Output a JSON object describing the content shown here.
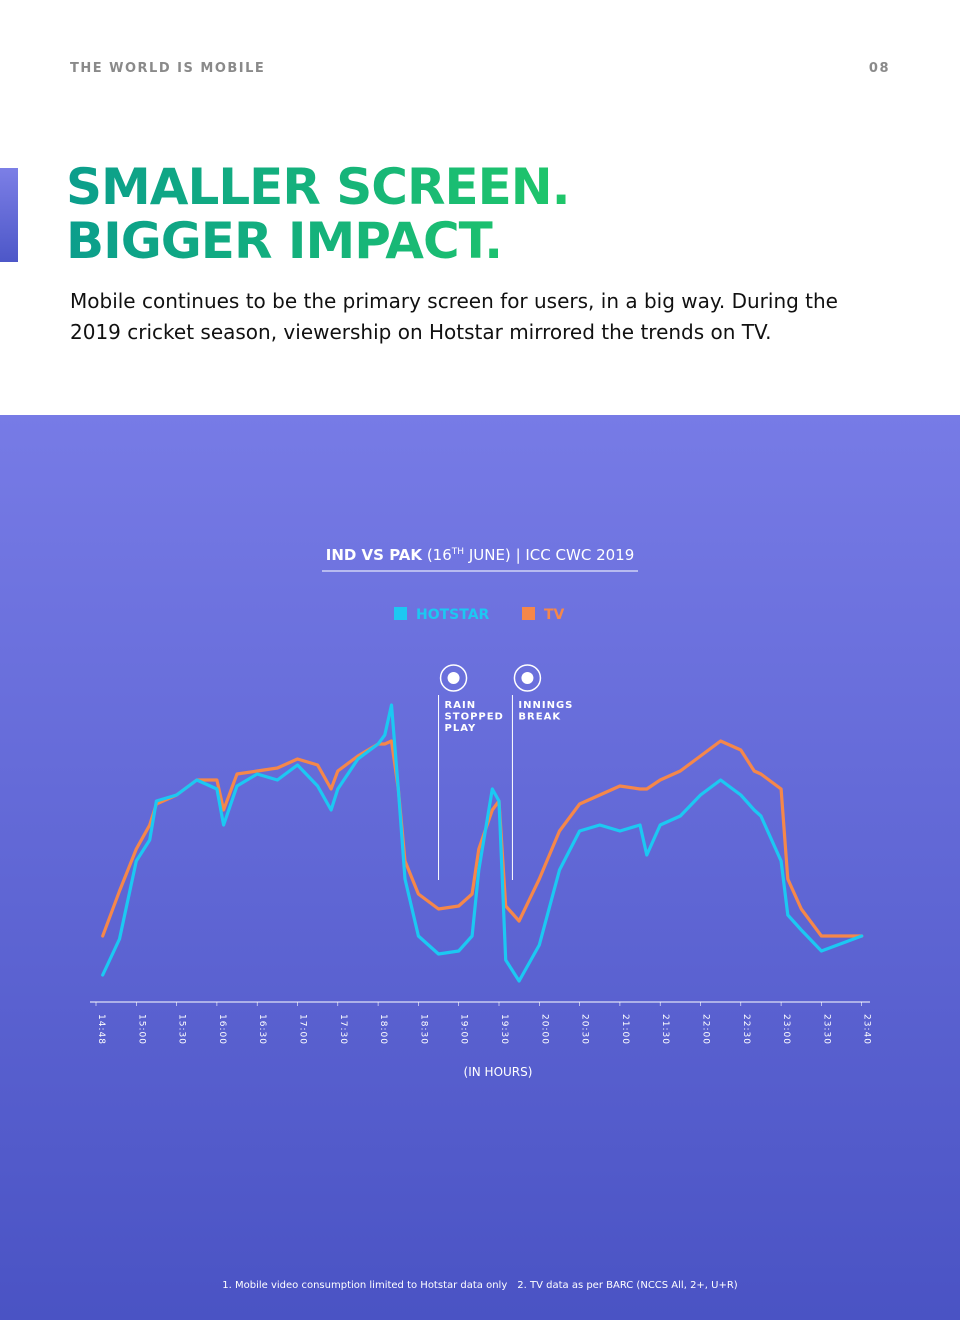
{
  "header": {
    "section": "THE WORLD IS MOBILE",
    "page": "08"
  },
  "headline": [
    "SMALLER SCREEN.",
    "BIGGER IMPACT."
  ],
  "body": "Mobile continues to be the primary screen for users, in a big way. During the 2019 cricket season, viewership on Hotstar mirrored the trends on TV.",
  "chart_data": {
    "type": "line",
    "title": {
      "match": "IND VS PAK",
      "date_open": "(16",
      "date_sup": "TH",
      "date_close": " JUNE)",
      "event": "| ICC CWC 2019"
    },
    "x_label": "(IN HOURS)",
    "x": [
      "14:50",
      "14:55",
      "15:00",
      "15:10",
      "15:15",
      "15:30",
      "15:45",
      "16:00",
      "16:05",
      "16:15",
      "16:30",
      "16:45",
      "17:00",
      "17:15",
      "17:25",
      "17:30",
      "17:45",
      "18:00",
      "18:05",
      "18:10",
      "18:15",
      "18:20",
      "18:30",
      "18:45",
      "19:00",
      "19:10",
      "19:15",
      "19:25",
      "19:30",
      "19:35",
      "19:45",
      "20:00",
      "20:15",
      "20:30",
      "20:45",
      "21:00",
      "21:15",
      "21:20",
      "21:30",
      "21:45",
      "22:00",
      "22:15",
      "22:30",
      "22:40",
      "22:45",
      "23:00",
      "23:05",
      "23:15",
      "23:30",
      "23:40"
    ],
    "xticks": [
      "14:48",
      "15:00",
      "15:30",
      "16:00",
      "16:30",
      "17:00",
      "17:30",
      "18:00",
      "18:30",
      "19:00",
      "19:30",
      "20:00",
      "20:30",
      "21:00",
      "21:30",
      "22:00",
      "22:30",
      "23:00",
      "23:30",
      "23:40"
    ],
    "series": [
      {
        "name": "HOTSTAR",
        "color": "#1cc8f2",
        "values": [
          9,
          21,
          47,
          54,
          67,
          69,
          74,
          71,
          59,
          72,
          76,
          74,
          79,
          72,
          64,
          71,
          81,
          86,
          89,
          99,
          71,
          41,
          22,
          16,
          17,
          22,
          44,
          71,
          67,
          14,
          7,
          19,
          44,
          57,
          59,
          57,
          59,
          49,
          59,
          62,
          69,
          74,
          69,
          64,
          62,
          47,
          29,
          24,
          17,
          22
        ]
      },
      {
        "name": "TV",
        "color": "#f5874a",
        "values": [
          22,
          37,
          51,
          59,
          66,
          69,
          74,
          74,
          64,
          76,
          77,
          78,
          81,
          79,
          71,
          77,
          82,
          86,
          86,
          87,
          71,
          47,
          36,
          31,
          32,
          36,
          51,
          64,
          67,
          32,
          27,
          41,
          57,
          66,
          69,
          72,
          71,
          71,
          74,
          77,
          82,
          87,
          84,
          77,
          76,
          71,
          41,
          31,
          22,
          22
        ]
      }
    ],
    "annotations": [
      {
        "text": [
          "RAIN",
          "STOPPED",
          "PLAY"
        ],
        "x": "18:45"
      },
      {
        "text": [
          "INNINGS",
          "BREAK"
        ],
        "x": "19:40"
      }
    ]
  },
  "footnotes": [
    "1. Mobile video consumption limited to Hotstar data only",
    "2. TV data as per BARC (NCCS All, 2+, U+R)"
  ]
}
